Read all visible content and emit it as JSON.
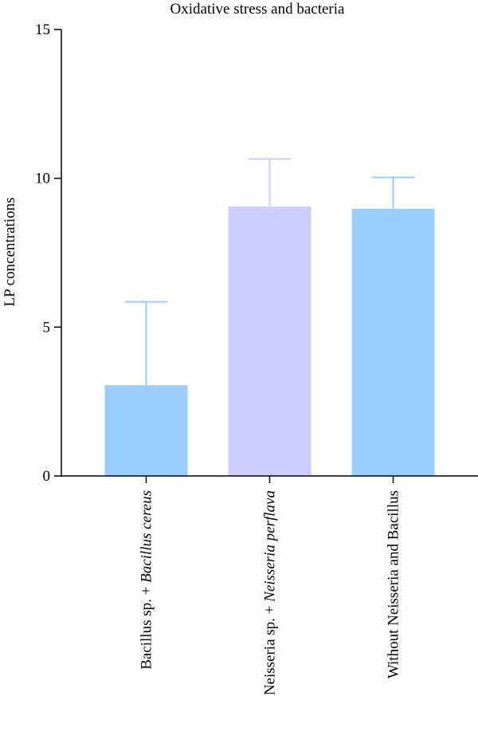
{
  "chart_data": {
    "type": "bar",
    "title": "Oxidative stress and bacteria",
    "xlabel": "",
    "ylabel": "LP concentrations",
    "ylim": [
      0,
      15
    ],
    "yticks": [
      0,
      5,
      10,
      15
    ],
    "grid": false,
    "categories": [
      {
        "parts": [
          {
            "text": "Bacillus sp. + ",
            "italic": false
          },
          {
            "text": "Bacillus cereus",
            "italic": true
          }
        ]
      },
      {
        "parts": [
          {
            "text": "Neisseria sp. + ",
            "italic": false
          },
          {
            "text": "Neisseria perflava",
            "italic": true
          }
        ]
      },
      {
        "parts": [
          {
            "text": "Without Neisseria and Bacillus",
            "italic": false
          }
        ]
      }
    ],
    "values": [
      3.05,
      9.05,
      8.98
    ],
    "errors": [
      2.8,
      1.6,
      1.05
    ],
    "colors": [
      "#99ccff",
      "#ccccff",
      "#99ccff"
    ]
  }
}
